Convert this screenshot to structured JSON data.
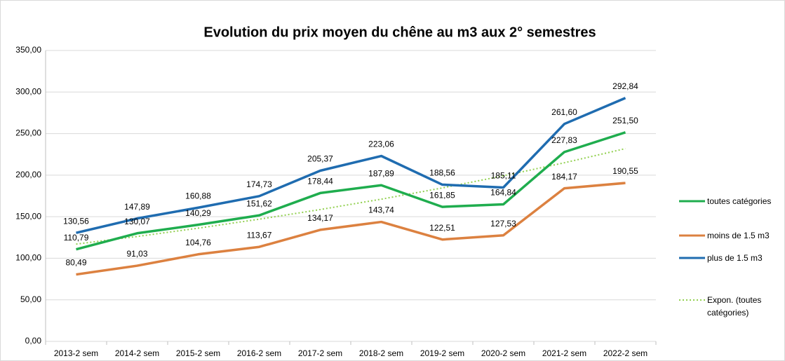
{
  "chart_data": {
    "type": "line",
    "title": "Evolution du prix moyen du chêne au m3 aux 2° semestres",
    "categories": [
      "2013-2 sem",
      "2014-2 sem",
      "2015-2 sem",
      "2016-2 sem",
      "2017-2 sem",
      "2018-2 sem",
      "2019-2 sem",
      "2020-2 sem",
      "2021-2 sem",
      "2022-2 sem"
    ],
    "ylim": [
      0,
      350
    ],
    "yticks": [
      {
        "value": 0,
        "label": "0,00"
      },
      {
        "value": 50,
        "label": "50,00"
      },
      {
        "value": 100,
        "label": "100,00"
      },
      {
        "value": 150,
        "label": "150,00"
      },
      {
        "value": 200,
        "label": "200,00"
      },
      {
        "value": 250,
        "label": "250,00"
      },
      {
        "value": 300,
        "label": "300,00"
      },
      {
        "value": 350,
        "label": "350,00"
      }
    ],
    "grid": true,
    "legend": "right",
    "series": [
      {
        "name": "toutes catégories",
        "color": "#1fad4e",
        "style": "solid",
        "values": [
          110.79,
          130.07,
          140.29,
          151.62,
          178.44,
          187.89,
          161.85,
          164.84,
          227.83,
          251.5
        ],
        "value_labels": [
          "110,79",
          "130,07",
          "140,29",
          "151,62",
          "178,44",
          "187,89",
          "161,85",
          "164,84",
          "227,83",
          "251,50"
        ]
      },
      {
        "name": "moins de 1.5 m3",
        "color": "#dc8140",
        "style": "solid",
        "values": [
          80.49,
          91.03,
          104.76,
          113.67,
          134.17,
          143.74,
          122.51,
          127.53,
          184.17,
          190.55
        ],
        "value_labels": [
          "80,49",
          "91,03",
          "104,76",
          "113,67",
          "134,17",
          "143,74",
          "122,51",
          "127,53",
          "184,17",
          "190,55"
        ]
      },
      {
        "name": "plus de 1.5 m3",
        "color": "#1f6cb0",
        "style": "solid",
        "values": [
          130.56,
          147.89,
          160.88,
          174.73,
          205.37,
          223.06,
          188.56,
          185.11,
          261.6,
          292.84
        ],
        "value_labels": [
          "130,56",
          "147,89",
          "160,88",
          "174,73",
          "205,37",
          "223,06",
          "188,56",
          "185,11",
          "261,60",
          "292,84"
        ]
      },
      {
        "name": "Expon. (toutes catégories)",
        "color": "#92d050",
        "style": "dotted",
        "values": [
          117,
          126.2,
          136.2,
          147,
          158.6,
          171.1,
          184.6,
          199.2,
          214.9,
          231.9
        ]
      }
    ]
  }
}
